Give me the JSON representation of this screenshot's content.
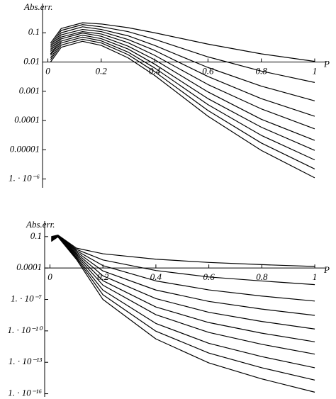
{
  "chart_data": [
    {
      "type": "line",
      "ylabel": "Abs.err.",
      "xlabel": "P",
      "log_y": true,
      "color": "#000000",
      "xaxis_at": 0.01,
      "xlim": [
        -0.02,
        1.04
      ],
      "ylim": [
        5e-07,
        1
      ],
      "xticks": [
        0,
        0.2,
        0.4,
        0.6,
        0.8,
        1
      ],
      "yticks": [
        0.1,
        0.01,
        0.001,
        0.0001,
        1e-05,
        {
          "value": 1e-06,
          "label": "1. · 10⁻⁶"
        }
      ],
      "x": [
        0.01,
        0.05,
        0.13,
        0.2,
        0.3,
        0.4,
        0.6,
        0.8,
        1
      ],
      "series": [
        {
          "values": [
            0.044,
            0.14,
            0.22,
            0.2,
            0.15,
            0.1,
            0.041,
            0.019,
            0.0105
          ]
        },
        {
          "values": [
            0.037,
            0.12,
            0.19,
            0.16,
            0.11,
            0.06,
            0.015,
            0.0049,
            0.002
          ]
        },
        {
          "values": [
            0.032,
            0.1,
            0.16,
            0.13,
            0.079,
            0.037,
            0.0065,
            0.0015,
            0.00047
          ]
        },
        {
          "values": [
            0.027,
            0.085,
            0.13,
            0.11,
            0.059,
            0.025,
            0.0032,
            0.00056,
            0.00014
          ]
        },
        {
          "values": [
            0.023,
            0.072,
            0.11,
            0.091,
            0.046,
            0.017,
            0.0017,
            0.00025,
            5.2e-05
          ]
        },
        {
          "values": [
            0.019,
            0.062,
            0.098,
            0.076,
            0.035,
            0.012,
            0.00095,
            0.00011,
            2.1e-05
          ]
        },
        {
          "values": [
            0.017,
            0.052,
            0.083,
            0.063,
            0.028,
            0.0085,
            0.00056,
            5.9e-05,
            9.5e-06
          ]
        },
        {
          "values": [
            0.014,
            0.045,
            0.071,
            0.053,
            0.022,
            0.0063,
            0.00035,
            3.1e-05,
            4.5e-06
          ]
        },
        {
          "values": [
            0.012,
            0.038,
            0.06,
            0.045,
            0.018,
            0.0047,
            0.00022,
            1.7e-05,
            2.2e-06
          ]
        },
        {
          "values": [
            0.01,
            0.032,
            0.051,
            0.037,
            0.014,
            0.0035,
            0.00014,
            9.5e-06,
            1.1e-06
          ]
        }
      ]
    },
    {
      "type": "line",
      "ylabel": "Abs.err.",
      "xlabel": "P",
      "log_y": true,
      "color": "#000000",
      "xaxis_at": 0.0001,
      "xlim": [
        -0.02,
        1.04
      ],
      "ylim": [
        5e-17,
        3
      ],
      "xticks": [
        0,
        0.2,
        0.4,
        0.6,
        0.8,
        1
      ],
      "yticks": [
        0.1,
        0.0001,
        {
          "value": 1e-07,
          "label": "1. · 10⁻⁷"
        },
        {
          "value": 1e-10,
          "label": "1. · 10⁻¹⁰"
        },
        {
          "value": 1e-13,
          "label": "1. · 10⁻¹³"
        },
        {
          "value": 1e-16,
          "label": "1. · 10⁻¹⁶"
        }
      ],
      "x": [
        0.005,
        0.03,
        0.1,
        0.2,
        0.4,
        0.6,
        0.8,
        1
      ],
      "series": [
        {
          "values": [
            0.1,
            0.14,
            0.0079,
            0.0023,
            0.00069,
            0.00034,
            0.00021,
            0.00014
          ]
        },
        {
          "values": [
            0.089,
            0.13,
            0.006,
            0.00059,
            5.8e-05,
            1.4e-05,
            5.8e-06,
            2.6e-06
          ]
        },
        {
          "values": [
            0.079,
            0.13,
            0.0046,
            0.00017,
            5.9e-06,
            8.1e-07,
            2.1e-07,
            7e-08
          ]
        },
        {
          "values": [
            0.071,
            0.12,
            0.0035,
            5.2e-05,
            7.9e-07,
            6.5e-08,
            1.2e-08,
            3e-09
          ]
        },
        {
          "values": [
            0.063,
            0.12,
            0.0026,
            1.8e-05,
            1.2e-07,
            5.9e-09,
            7.9e-10,
            1.5e-10
          ]
        },
        {
          "values": [
            0.056,
            0.11,
            0.002,
            6.2e-06,
            1.9e-08,
            6.2e-10,
            6e-11,
            9e-12
          ]
        },
        {
          "values": [
            0.05,
            0.11,
            0.0015,
            2.3e-06,
            3.5e-09,
            7.1e-11,
            5.2e-12,
            6e-13
          ]
        },
        {
          "values": [
            0.045,
            0.1,
            0.0011,
            7.8e-07,
            5.1e-10,
            6.5e-12,
            3.5e-13,
            3e-14
          ]
        },
        {
          "values": [
            0.04,
            0.098,
            0.00087,
            2.8e-07,
            9.3e-11,
            7.6e-13,
            3e-14,
            2e-15
          ]
        },
        {
          "values": [
            0.035,
            0.093,
            0.00066,
            1e-07,
            1.7e-11,
            8.7e-14,
            2.6e-15,
            1.4e-16
          ]
        }
      ]
    }
  ]
}
